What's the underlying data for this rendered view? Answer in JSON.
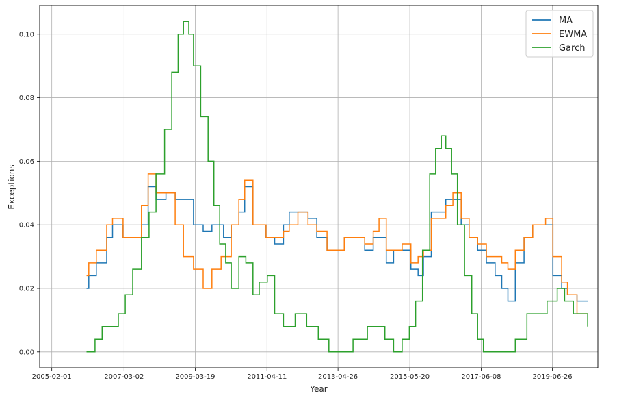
{
  "chart_data": {
    "type": "line",
    "xlabel": "Year",
    "ylabel": "Exceptions",
    "x_ticks": [
      "2005-02-01",
      "2007-03-02",
      "2009-03-19",
      "2011-04-11",
      "2013-04-26",
      "2015-05-20",
      "2017-06-08",
      "2019-06-26"
    ],
    "y_ticks": [
      "0.00",
      "0.02",
      "0.04",
      "0.06",
      "0.08",
      "0.10"
    ],
    "xlim": [
      "2004-09-27",
      "2020-10-15"
    ],
    "ylim": [
      -0.005,
      0.109
    ],
    "grid": true,
    "legend_position": "top-right",
    "series": [
      {
        "name": "MA",
        "color": "#1f77b4",
        "x": [
          "2006-02-01",
          "2006-02-25",
          "2006-05-15",
          "2006-09-01",
          "2006-11-01",
          "2007-02-20",
          "2007-09-01",
          "2007-11-10",
          "2008-02-01",
          "2008-05-15",
          "2008-08-20",
          "2008-11-15",
          "2009-03-01",
          "2009-06-10",
          "2009-09-10",
          "2009-12-15",
          "2010-01-10",
          "2010-04-01",
          "2010-06-20",
          "2010-08-20",
          "2010-11-15",
          "2011-04-01",
          "2011-07-01",
          "2011-10-01",
          "2011-12-01",
          "2012-03-01",
          "2012-06-15",
          "2012-09-15",
          "2013-01-01",
          "2013-04-01",
          "2013-07-01",
          "2013-10-01",
          "2014-02-01",
          "2014-05-01",
          "2014-07-01",
          "2014-09-15",
          "2014-12-01",
          "2015-03-01",
          "2015-06-01",
          "2015-08-15",
          "2015-10-10",
          "2016-01-01",
          "2016-03-15",
          "2016-06-01",
          "2016-08-15",
          "2016-11-10",
          "2017-02-01",
          "2017-05-01",
          "2017-08-01",
          "2017-11-01",
          "2018-01-10",
          "2018-03-15",
          "2018-06-01",
          "2018-09-01",
          "2018-12-01",
          "2019-02-15",
          "2019-04-15",
          "2019-07-01",
          "2019-10-01",
          "2019-12-01",
          "2020-03-10",
          "2020-06-30"
        ],
        "values": [
          0.02,
          0.024,
          0.028,
          0.036,
          0.04,
          0.036,
          0.04,
          0.052,
          0.048,
          0.05,
          0.048,
          0.048,
          0.04,
          0.038,
          0.04,
          0.04,
          0.036,
          0.04,
          0.044,
          0.052,
          0.04,
          0.036,
          0.034,
          0.04,
          0.044,
          0.044,
          0.042,
          0.036,
          0.032,
          0.032,
          0.036,
          0.036,
          0.032,
          0.036,
          0.036,
          0.028,
          0.032,
          0.032,
          0.026,
          0.024,
          0.03,
          0.044,
          0.044,
          0.048,
          0.048,
          0.04,
          0.036,
          0.032,
          0.028,
          0.024,
          0.02,
          0.016,
          0.028,
          0.036,
          0.04,
          0.04,
          0.04,
          0.024,
          0.02,
          0.018,
          0.016,
          0.016
        ]
      },
      {
        "name": "EWMA",
        "color": "#ff7f0e",
        "x": [
          "2006-02-01",
          "2006-02-25",
          "2006-05-15",
          "2006-09-01",
          "2006-11-01",
          "2007-02-20",
          "2007-09-01",
          "2007-11-10",
          "2008-02-01",
          "2008-05-15",
          "2008-08-20",
          "2008-11-15",
          "2009-03-01",
          "2009-06-10",
          "2009-09-10",
          "2009-12-15",
          "2010-01-10",
          "2010-04-01",
          "2010-06-20",
          "2010-08-20",
          "2010-11-15",
          "2011-04-01",
          "2011-07-01",
          "2011-10-01",
          "2011-12-01",
          "2012-03-01",
          "2012-06-15",
          "2012-09-15",
          "2013-01-01",
          "2013-04-01",
          "2013-07-01",
          "2013-10-01",
          "2014-02-01",
          "2014-05-01",
          "2014-07-01",
          "2014-09-15",
          "2014-12-01",
          "2015-03-01",
          "2015-06-01",
          "2015-08-15",
          "2015-10-10",
          "2016-01-01",
          "2016-03-15",
          "2016-06-01",
          "2016-08-15",
          "2016-11-10",
          "2017-02-01",
          "2017-05-01",
          "2017-08-01",
          "2017-11-01",
          "2018-01-10",
          "2018-03-15",
          "2018-06-01",
          "2018-09-01",
          "2018-12-01",
          "2019-02-15",
          "2019-04-15",
          "2019-07-01",
          "2019-10-01",
          "2019-12-01",
          "2020-03-10",
          "2020-06-30"
        ],
        "values": [
          0.024,
          0.028,
          0.032,
          0.04,
          0.042,
          0.036,
          0.046,
          0.056,
          0.05,
          0.05,
          0.04,
          0.03,
          0.026,
          0.02,
          0.026,
          0.03,
          0.03,
          0.04,
          0.048,
          0.054,
          0.04,
          0.036,
          0.036,
          0.038,
          0.04,
          0.044,
          0.04,
          0.038,
          0.032,
          0.032,
          0.036,
          0.036,
          0.034,
          0.038,
          0.042,
          0.032,
          0.032,
          0.034,
          0.028,
          0.03,
          0.032,
          0.042,
          0.042,
          0.046,
          0.05,
          0.042,
          0.036,
          0.034,
          0.03,
          0.03,
          0.028,
          0.026,
          0.032,
          0.036,
          0.04,
          0.04,
          0.042,
          0.03,
          0.022,
          0.018,
          0.012,
          0.012
        ]
      },
      {
        "name": "Garch",
        "color": "#2ca02c",
        "x": [
          "2006-02-01",
          "2006-05-01",
          "2006-07-15",
          "2006-10-01",
          "2007-01-01",
          "2007-03-15",
          "2007-06-01",
          "2007-09-01",
          "2007-11-20",
          "2008-02-01",
          "2008-05-01",
          "2008-07-15",
          "2008-09-20",
          "2008-11-15",
          "2009-01-10",
          "2009-03-01",
          "2009-05-15",
          "2009-08-01",
          "2009-10-01",
          "2009-12-01",
          "2010-02-01",
          "2010-04-01",
          "2010-06-20",
          "2010-09-01",
          "2010-11-15",
          "2011-01-20",
          "2011-04-15",
          "2011-07-01",
          "2011-10-01",
          "2012-02-01",
          "2012-06-01",
          "2012-10-01",
          "2013-01-20",
          "2013-05-15",
          "2013-10-01",
          "2014-03-01",
          "2014-06-01",
          "2014-09-01",
          "2014-12-01",
          "2015-03-01",
          "2015-05-15",
          "2015-07-20",
          "2015-10-01",
          "2015-12-15",
          "2016-02-15",
          "2016-04-15",
          "2016-06-01",
          "2016-08-01",
          "2016-10-01",
          "2016-12-15",
          "2017-03-01",
          "2017-05-01",
          "2017-07-01",
          "2017-10-01",
          "2018-02-01",
          "2018-06-01",
          "2018-10-01",
          "2019-02-01",
          "2019-05-01",
          "2019-08-15",
          "2019-11-01",
          "2020-02-01",
          "2020-06-30"
        ],
        "values": [
          0.0,
          0.004,
          0.008,
          0.008,
          0.012,
          0.018,
          0.026,
          0.036,
          0.044,
          0.056,
          0.07,
          0.088,
          0.1,
          0.104,
          0.1,
          0.09,
          0.074,
          0.06,
          0.046,
          0.034,
          0.028,
          0.02,
          0.03,
          0.028,
          0.018,
          0.022,
          0.024,
          0.012,
          0.008,
          0.012,
          0.008,
          0.004,
          0.0,
          0.0,
          0.004,
          0.008,
          0.008,
          0.004,
          0.0,
          0.004,
          0.008,
          0.016,
          0.032,
          0.056,
          0.064,
          0.068,
          0.064,
          0.056,
          0.04,
          0.024,
          0.012,
          0.004,
          0.0,
          0.0,
          0.0,
          0.004,
          0.012,
          0.012,
          0.016,
          0.02,
          0.016,
          0.012,
          0.008
        ]
      }
    ]
  }
}
